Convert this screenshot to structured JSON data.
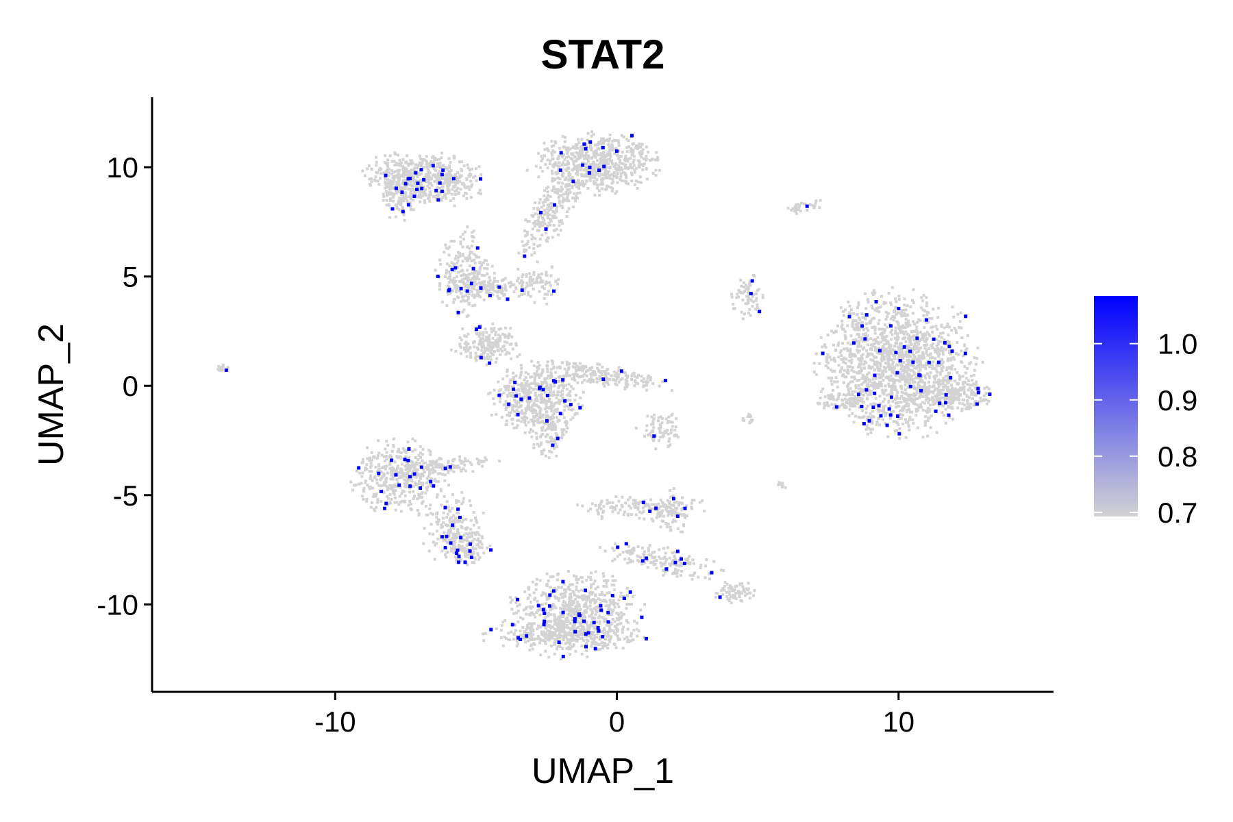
{
  "chart_data": {
    "type": "scatter",
    "title": "STAT2",
    "xlabel": "UMAP_1",
    "ylabel": "UMAP_2",
    "xlim": [
      -16.5,
      15.5
    ],
    "ylim": [
      -14,
      13.2
    ],
    "x_ticks": [
      -10,
      0,
      10
    ],
    "x_tick_labels": [
      "-10",
      "0",
      "10"
    ],
    "y_ticks": [
      -10,
      -5,
      0,
      5,
      10
    ],
    "y_tick_labels": [
      "-10",
      "-5",
      "0",
      "5",
      "10"
    ],
    "grid": false,
    "colors": {
      "low": "#d3d3d3",
      "high": "#0000ff"
    },
    "legend": {
      "placement": "right",
      "min": 0.7,
      "max": 1.08,
      "ticks": [
        0.7,
        0.8,
        0.9,
        1.0
      ],
      "tick_labels": [
        "0.7",
        "0.8",
        "0.9",
        "1.0"
      ]
    },
    "clusters": [
      {
        "cx": -6.8,
        "cy": 9.5,
        "sx": 1.0,
        "sy": 0.55,
        "n": 520,
        "rot": -8
      },
      {
        "cx": -7.6,
        "cy": 8.8,
        "sx": 0.35,
        "sy": 0.6,
        "n": 120,
        "rot": 0
      },
      {
        "cx": -0.7,
        "cy": 10.2,
        "sx": 1.0,
        "sy": 0.65,
        "n": 600,
        "rot": 0
      },
      {
        "cx": -2.3,
        "cy": 8.0,
        "sx": 0.35,
        "sy": 1.3,
        "n": 240,
        "rot": -25
      },
      {
        "cx": -5.4,
        "cy": 5.2,
        "sx": 0.45,
        "sy": 0.9,
        "n": 200,
        "rot": 0
      },
      {
        "cx": -4.5,
        "cy": 4.6,
        "sx": 0.8,
        "sy": 0.3,
        "n": 160,
        "rot": 0
      },
      {
        "cx": -2.7,
        "cy": 4.7,
        "sx": 0.35,
        "sy": 0.45,
        "n": 60,
        "rot": 0
      },
      {
        "cx": -4.6,
        "cy": 1.9,
        "sx": 0.55,
        "sy": 0.45,
        "n": 180,
        "rot": 0
      },
      {
        "cx": -2.9,
        "cy": -0.6,
        "sx": 0.75,
        "sy": 0.75,
        "n": 460,
        "rot": 0
      },
      {
        "cx": -0.6,
        "cy": 0.5,
        "sx": 1.2,
        "sy": 0.22,
        "n": 220,
        "rot": -12
      },
      {
        "cx": -2.4,
        "cy": -2.2,
        "sx": 0.3,
        "sy": 0.55,
        "n": 90,
        "rot": 0
      },
      {
        "cx": 1.5,
        "cy": -2.0,
        "sx": 0.4,
        "sy": 0.4,
        "n": 70,
        "rot": 0
      },
      {
        "cx": 10.0,
        "cy": 1.0,
        "sx": 1.3,
        "sy": 1.5,
        "n": 1500,
        "rot": 0
      },
      {
        "cx": 11.9,
        "cy": -0.4,
        "sx": 0.7,
        "sy": 0.35,
        "n": 220,
        "rot": 0
      },
      {
        "cx": 8.0,
        "cy": -0.7,
        "sx": 0.45,
        "sy": 0.18,
        "n": 60,
        "rot": 0
      },
      {
        "cx": 4.6,
        "cy": 4.1,
        "sx": 0.3,
        "sy": 0.5,
        "n": 70,
        "rot": 0
      },
      {
        "cx": 6.7,
        "cy": 8.2,
        "sx": 0.35,
        "sy": 0.12,
        "n": 30,
        "rot": 15
      },
      {
        "cx": -14.0,
        "cy": 0.8,
        "sx": 0.12,
        "sy": 0.08,
        "n": 14,
        "rot": 0
      },
      {
        "cx": -7.8,
        "cy": -4.2,
        "sx": 0.8,
        "sy": 0.8,
        "n": 400,
        "rot": 0
      },
      {
        "cx": -6.2,
        "cy": -3.7,
        "sx": 0.9,
        "sy": 0.2,
        "n": 120,
        "rot": 8
      },
      {
        "cx": -5.8,
        "cy": -6.5,
        "sx": 0.5,
        "sy": 0.8,
        "n": 170,
        "rot": 0
      },
      {
        "cx": -5.3,
        "cy": -7.4,
        "sx": 0.35,
        "sy": 0.35,
        "n": 110,
        "rot": 0
      },
      {
        "cx": -1.5,
        "cy": -10.5,
        "sx": 1.1,
        "sy": 0.9,
        "n": 700,
        "rot": 0
      },
      {
        "cx": -1.9,
        "cy": -11.4,
        "sx": 1.3,
        "sy": 0.3,
        "n": 240,
        "rot": 0
      },
      {
        "cx": 1.6,
        "cy": -8.0,
        "sx": 1.0,
        "sy": 0.3,
        "n": 150,
        "rot": -15
      },
      {
        "cx": 1.0,
        "cy": -5.6,
        "sx": 1.1,
        "sy": 0.25,
        "n": 140,
        "rot": 0
      },
      {
        "cx": 2.0,
        "cy": -5.8,
        "sx": 0.3,
        "sy": 0.5,
        "n": 60,
        "rot": 0
      },
      {
        "cx": 4.2,
        "cy": -9.5,
        "sx": 0.35,
        "sy": 0.25,
        "n": 70,
        "rot": 0
      },
      {
        "cx": 4.7,
        "cy": -1.5,
        "sx": 0.15,
        "sy": 0.12,
        "n": 12,
        "rot": 0
      },
      {
        "cx": 5.8,
        "cy": -4.5,
        "sx": 0.12,
        "sy": 0.1,
        "n": 10,
        "rot": 0
      }
    ],
    "highlighted_fraction": 0.035
  }
}
